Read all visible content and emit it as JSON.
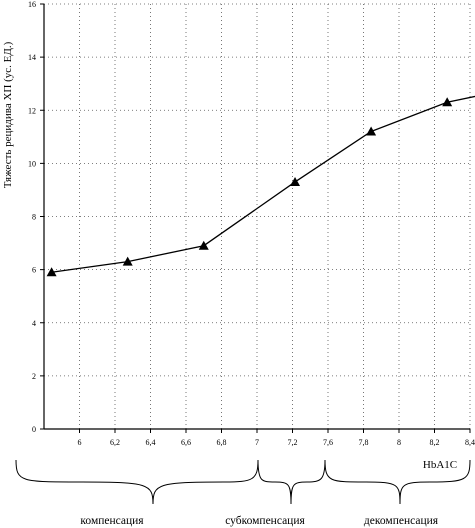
{
  "chart_data": {
    "type": "line",
    "title": "",
    "xlabel": "HbA1C",
    "ylabel": "Тяжесть рецидива ХП (ус. ЕД.)",
    "xlim": [
      5.6,
      8.4
    ],
    "ylim": [
      0,
      16
    ],
    "x_ticks": [
      "6",
      "6,2",
      "6,4",
      "6,6",
      "6,8",
      "7",
      "7,2",
      "7,6",
      "7,8",
      "8",
      "8,2",
      "8,4"
    ],
    "y_ticks": [
      "0",
      "2",
      "4",
      "6",
      "8",
      "10",
      "12",
      "14",
      "16"
    ],
    "grid": true,
    "series": [
      {
        "name": "",
        "marker": "triangle",
        "x": [
          5.65,
          6.15,
          6.65,
          7.25,
          7.75,
          8.25,
          8.5
        ],
        "y": [
          5.9,
          6.3,
          6.9,
          9.3,
          11.2,
          12.3,
          12.6
        ]
      }
    ],
    "zones": [
      "компенсация",
      "субкомпенсация",
      "декомпенсация"
    ]
  }
}
